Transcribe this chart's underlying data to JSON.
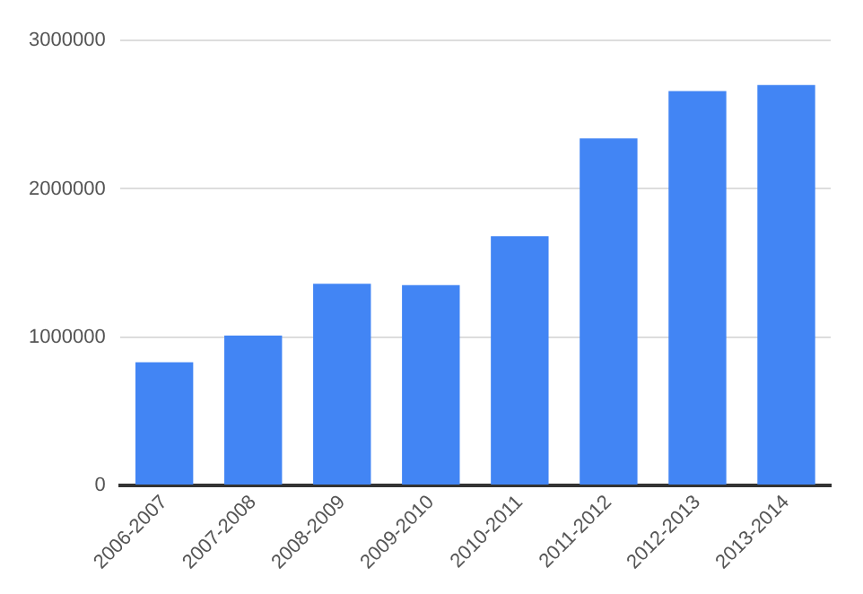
{
  "chart_data": {
    "type": "bar",
    "categories": [
      "2006-2007",
      "2007-2008",
      "2008-2009",
      "2009-2010",
      "2010-2011",
      "2011-2012",
      "2012-2013",
      "2013-2014"
    ],
    "values": [
      830000,
      1010000,
      1360000,
      1350000,
      1680000,
      2340000,
      2660000,
      2700000
    ],
    "color": "#4285f4",
    "ylim": [
      0,
      3000000
    ],
    "yticks": [
      0,
      1000000,
      2000000,
      3000000
    ],
    "grid": "y"
  }
}
